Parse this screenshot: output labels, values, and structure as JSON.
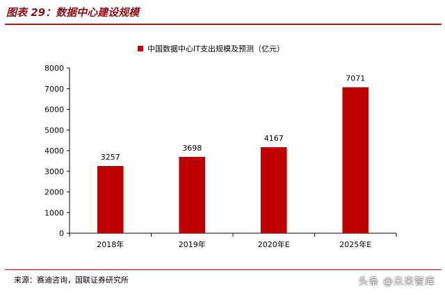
{
  "header": {
    "title": "图表 29：数据中心建设规模"
  },
  "footer": {
    "source": "来源：赛迪咨询，国联证券研究所",
    "watermark": "头条 @未来智库"
  },
  "colors": {
    "bar": "#c00000",
    "accent": "#9b1b1f"
  },
  "chart_data": {
    "type": "bar",
    "categories": [
      "2018年",
      "2019年",
      "2020年E",
      "2025年E"
    ],
    "series": [
      {
        "name": "中国数据中心IT支出规模及预测（亿元）",
        "values": [
          3257,
          3698,
          4167,
          7071
        ]
      }
    ],
    "ylim": [
      0,
      8000
    ],
    "yticks": [
      0,
      1000,
      2000,
      3000,
      4000,
      5000,
      6000,
      7000,
      8000
    ],
    "legend": "top-center",
    "grid": false,
    "data_labels": true
  }
}
